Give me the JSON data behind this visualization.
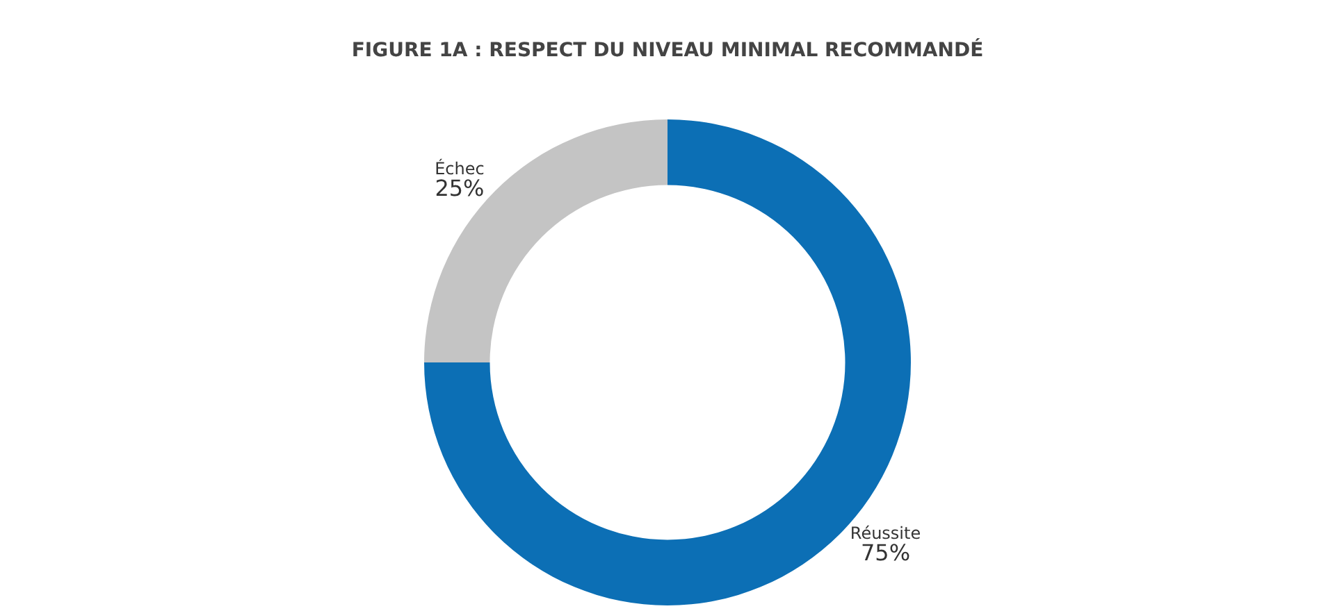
{
  "chart_data": {
    "type": "donut",
    "title": "FIGURE 1A : RESPECT DU NIVEAU MINIMAL RECOMMANDÉ",
    "categories": [
      "Réussite",
      "Échec"
    ],
    "values": [
      75,
      25
    ],
    "value_labels": [
      "75%",
      "25%"
    ],
    "colors": [
      "#0c6fb5",
      "#c4c4c4"
    ],
    "legend": false
  }
}
